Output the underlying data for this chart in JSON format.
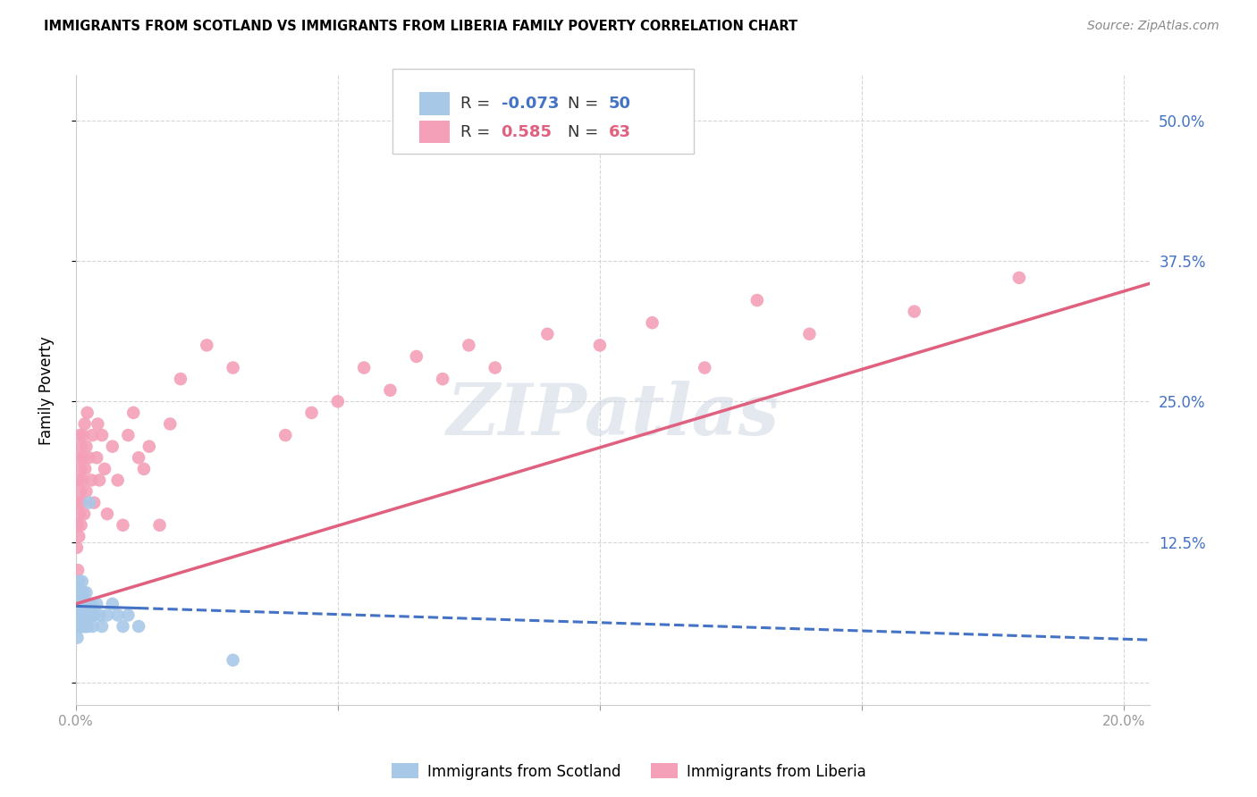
{
  "title": "IMMIGRANTS FROM SCOTLAND VS IMMIGRANTS FROM LIBERIA FAMILY POVERTY CORRELATION CHART",
  "source": "Source: ZipAtlas.com",
  "ylabel": "Family Poverty",
  "x_ticks": [
    0.0,
    0.05,
    0.1,
    0.15,
    0.2
  ],
  "y_ticks": [
    0.0,
    0.125,
    0.25,
    0.375,
    0.5
  ],
  "xlim": [
    0.0,
    0.205
  ],
  "ylim": [
    -0.02,
    0.54
  ],
  "scotland_color": "#a8c8e8",
  "liberia_color": "#f4a0b8",
  "scotland_R": -0.073,
  "scotland_N": 50,
  "liberia_R": 0.585,
  "liberia_N": 63,
  "scotland_x": [
    0.0002,
    0.0003,
    0.0004,
    0.0005,
    0.0005,
    0.0006,
    0.0006,
    0.0007,
    0.0007,
    0.0008,
    0.0008,
    0.0009,
    0.0009,
    0.001,
    0.001,
    0.001,
    0.001,
    0.0012,
    0.0012,
    0.0013,
    0.0013,
    0.0014,
    0.0015,
    0.0015,
    0.0016,
    0.0017,
    0.0017,
    0.0018,
    0.0019,
    0.002,
    0.002,
    0.0021,
    0.0022,
    0.0023,
    0.0025,
    0.0026,
    0.003,
    0.003,
    0.0032,
    0.0035,
    0.004,
    0.0045,
    0.005,
    0.006,
    0.007,
    0.008,
    0.009,
    0.01,
    0.012,
    0.03
  ],
  "scotland_y": [
    0.05,
    0.04,
    0.07,
    0.06,
    0.08,
    0.05,
    0.09,
    0.06,
    0.05,
    0.07,
    0.08,
    0.06,
    0.05,
    0.07,
    0.06,
    0.08,
    0.05,
    0.09,
    0.07,
    0.06,
    0.05,
    0.08,
    0.06,
    0.07,
    0.05,
    0.06,
    0.07,
    0.05,
    0.06,
    0.08,
    0.05,
    0.06,
    0.07,
    0.05,
    0.06,
    0.16,
    0.06,
    0.07,
    0.05,
    0.06,
    0.07,
    0.06,
    0.05,
    0.06,
    0.07,
    0.06,
    0.05,
    0.06,
    0.05,
    0.02
  ],
  "liberia_x": [
    0.0002,
    0.0003,
    0.0004,
    0.0005,
    0.0005,
    0.0006,
    0.0006,
    0.0007,
    0.0008,
    0.0009,
    0.001,
    0.001,
    0.001,
    0.0012,
    0.0013,
    0.0014,
    0.0015,
    0.0016,
    0.0017,
    0.0018,
    0.002,
    0.002,
    0.0022,
    0.0025,
    0.003,
    0.0032,
    0.0035,
    0.004,
    0.0042,
    0.0045,
    0.005,
    0.0055,
    0.006,
    0.007,
    0.008,
    0.009,
    0.01,
    0.011,
    0.012,
    0.013,
    0.014,
    0.016,
    0.018,
    0.02,
    0.025,
    0.03,
    0.04,
    0.045,
    0.05,
    0.055,
    0.06,
    0.065,
    0.07,
    0.075,
    0.08,
    0.09,
    0.1,
    0.11,
    0.12,
    0.13,
    0.14,
    0.16,
    0.18
  ],
  "liberia_y": [
    0.12,
    0.14,
    0.1,
    0.16,
    0.2,
    0.13,
    0.18,
    0.15,
    0.22,
    0.17,
    0.14,
    0.19,
    0.21,
    0.16,
    0.18,
    0.22,
    0.2,
    0.15,
    0.23,
    0.19,
    0.21,
    0.17,
    0.24,
    0.2,
    0.18,
    0.22,
    0.16,
    0.2,
    0.23,
    0.18,
    0.22,
    0.19,
    0.15,
    0.21,
    0.18,
    0.14,
    0.22,
    0.24,
    0.2,
    0.19,
    0.21,
    0.14,
    0.23,
    0.27,
    0.3,
    0.28,
    0.22,
    0.24,
    0.25,
    0.28,
    0.26,
    0.29,
    0.27,
    0.3,
    0.28,
    0.31,
    0.3,
    0.32,
    0.28,
    0.34,
    0.31,
    0.33,
    0.36
  ],
  "scotland_line_x0": 0.0,
  "scotland_line_x1": 0.205,
  "scotland_line_y0": 0.068,
  "scotland_line_y1": 0.038,
  "scotland_dash_break": 0.012,
  "liberia_line_x0": 0.0,
  "liberia_line_x1": 0.205,
  "liberia_line_y0": 0.07,
  "liberia_line_y1": 0.355,
  "watermark_text": "ZIPatlas",
  "background_color": "#ffffff",
  "grid_color": "#cccccc",
  "tick_color_right": "#4472c4",
  "legend_box_color_scotland": "#a8c8e8",
  "legend_box_color_liberia": "#f4a0b8",
  "scotland_line_color": "#4472c4",
  "liberia_line_color": "#e06080"
}
